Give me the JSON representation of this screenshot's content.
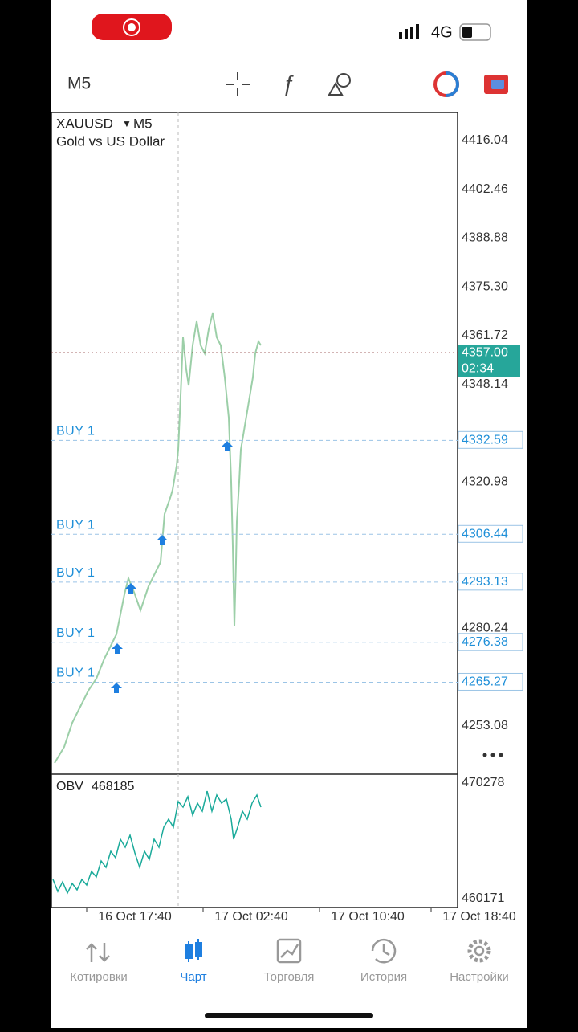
{
  "status_bar": {
    "network": "4G"
  },
  "toolbar": {
    "timeframe": "M5"
  },
  "chart": {
    "symbol": "XAUUSD",
    "timeframe": "M5",
    "description": "Gold vs US Dollar",
    "price_ticks": [
      "4416.04",
      "4402.46",
      "4388.88",
      "4375.30",
      "4361.72",
      "4348.14",
      "4320.98",
      "4280.24",
      "4253.08"
    ],
    "current_price": "4357.00",
    "countdown": "02:34",
    "orders": [
      {
        "label": "BUY 1",
        "price": "4332.59"
      },
      {
        "label": "BUY 1",
        "price": "4306.44"
      },
      {
        "label": "BUY 1",
        "price": "4293.13"
      },
      {
        "label": "BUY 1",
        "price": "4276.38"
      },
      {
        "label": "BUY 1",
        "price": "4265.27"
      }
    ],
    "indicator": {
      "name": "OBV",
      "value": "468185",
      "scale_top": "470278",
      "scale_bottom": "460171"
    },
    "time_labels": [
      "16 Oct 17:40",
      "17 Oct 02:40",
      "17 Oct 10:40",
      "17 Oct 18:40"
    ]
  },
  "nav": {
    "items": [
      "Котировки",
      "Чарт",
      "Торговля",
      "История",
      "Настройки"
    ]
  }
}
